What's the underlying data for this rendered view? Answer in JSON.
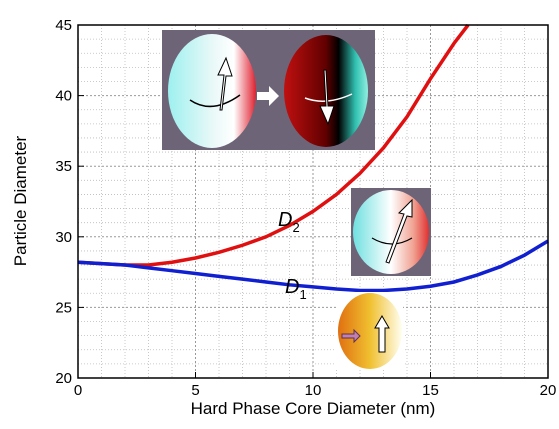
{
  "chart_data": {
    "type": "line",
    "xlabel": "Hard Phase Core Diameter (nm)",
    "ylabel": "Particle Diameter",
    "xlim": [
      0,
      20
    ],
    "xticks": [
      0,
      5,
      10,
      15,
      20
    ],
    "ylim": [
      20,
      45
    ],
    "yticks": [
      20,
      25,
      30,
      35,
      40,
      45
    ],
    "grid": true,
    "series": [
      {
        "color": "#e01010",
        "x": [
          0,
          1,
          2,
          3,
          4,
          5,
          6,
          7,
          8,
          9,
          10,
          11,
          12,
          13,
          14,
          15,
          16,
          16.6
        ],
        "values": [
          28.2,
          28.1,
          28.0,
          28.0,
          28.2,
          28.5,
          28.9,
          29.4,
          30.0,
          30.8,
          31.8,
          33.0,
          34.5,
          36.3,
          38.5,
          41.2,
          43.7,
          45
        ]
      },
      {
        "color": "#1020d0",
        "x": [
          0,
          1,
          2,
          3,
          4,
          5,
          6,
          7,
          8,
          9,
          10,
          11,
          12,
          13,
          14,
          15,
          16,
          17,
          18,
          19,
          20
        ],
        "values": [
          28.2,
          28.1,
          28.0,
          27.8,
          27.6,
          27.4,
          27.2,
          27.0,
          26.8,
          26.6,
          26.45,
          26.3,
          26.2,
          26.2,
          26.3,
          26.5,
          26.8,
          27.3,
          27.9,
          28.7,
          29.7
        ]
      }
    ],
    "annotations": [
      {
        "text": "D",
        "sub": "2"
      },
      {
        "text": "D",
        "sub": "1"
      }
    ]
  }
}
